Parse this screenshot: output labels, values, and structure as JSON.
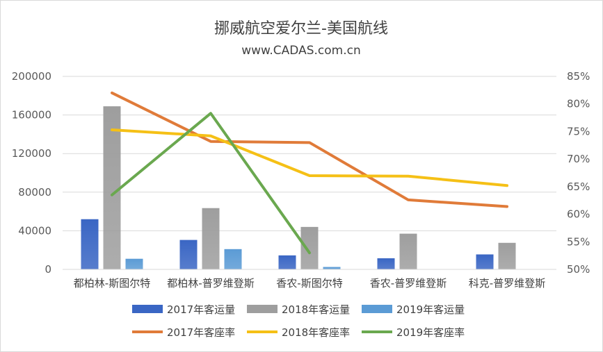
{
  "chart_data": {
    "type": "bar",
    "title": "挪威航空爱尔兰-美国航线",
    "subtitle": "www.CADAS.com.cn",
    "categories": [
      "都柏林-斯图尔特",
      "都柏林-普罗维登斯",
      "香农-斯图尔特",
      "香农-普罗维登斯",
      "科克-普罗维登斯"
    ],
    "y_left": {
      "ylim": [
        0,
        200000
      ],
      "ticks": [
        "0",
        "40000",
        "80000",
        "120000",
        "160000",
        "200000"
      ]
    },
    "y_right": {
      "ylim": [
        50,
        85
      ],
      "ticks": [
        "50%",
        "55%",
        "60%",
        "65%",
        "70%",
        "75%",
        "80%",
        "85%"
      ]
    },
    "bar_series": [
      {
        "name": "2017年客运量",
        "color": "#3a66c4",
        "values": [
          52000,
          30500,
          14500,
          11500,
          15500
        ]
      },
      {
        "name": "2018年客运量",
        "color": "#9e9e9e",
        "values": [
          169000,
          63500,
          44000,
          37000,
          27500
        ]
      },
      {
        "name": "2019年客运量",
        "color": "#5b9bd5",
        "values": [
          11000,
          21000,
          2500,
          null,
          null
        ]
      }
    ],
    "line_series": [
      {
        "name": "2017年客座率",
        "color": "#e07b39",
        "values": [
          82.0,
          73.2,
          73.0,
          62.6,
          61.4
        ]
      },
      {
        "name": "2018年客座率",
        "color": "#f5c016",
        "values": [
          75.3,
          74.2,
          67.0,
          66.9,
          65.2
        ]
      },
      {
        "name": "2019年客座率",
        "color": "#6aa84f",
        "values": [
          63.5,
          78.3,
          53.0,
          null,
          null
        ]
      }
    ],
    "grid": true,
    "legend": "bottom"
  }
}
